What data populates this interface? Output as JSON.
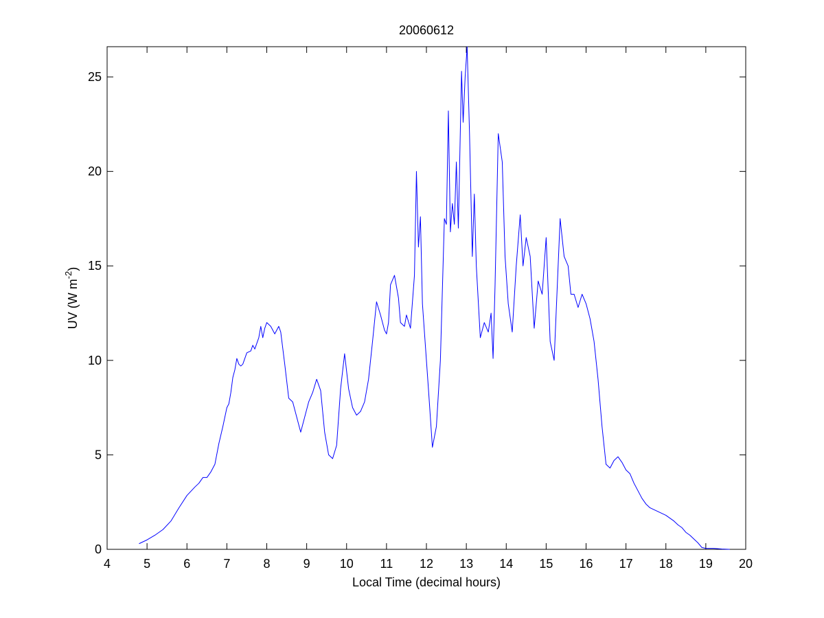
{
  "chart_data": {
    "type": "line",
    "title": "20060612",
    "xlabel": "Local Time (decimal hours)",
    "ylabel": [
      "UV (W m",
      "-2",
      ")"
    ],
    "xlim": [
      4,
      20
    ],
    "xticks": [
      4,
      5,
      6,
      7,
      8,
      9,
      10,
      11,
      12,
      13,
      14,
      15,
      16,
      17,
      18,
      19,
      20
    ],
    "ylim": [
      0,
      26.6
    ],
    "yticks": [
      0,
      5,
      10,
      15,
      20,
      25
    ],
    "grid": false,
    "series": [
      {
        "color": "#0000ff",
        "x": [
          4.8,
          5.0,
          5.2,
          5.4,
          5.6,
          5.8,
          6.0,
          6.2,
          6.3,
          6.4,
          6.5,
          6.6,
          6.7,
          6.8,
          6.9,
          7.0,
          7.05,
          7.1,
          7.15,
          7.2,
          7.25,
          7.3,
          7.35,
          7.4,
          7.5,
          7.6,
          7.65,
          7.7,
          7.8,
          7.85,
          7.9,
          7.95,
          8.0,
          8.1,
          8.2,
          8.3,
          8.35,
          8.45,
          8.55,
          8.65,
          8.75,
          8.85,
          8.95,
          9.05,
          9.15,
          9.25,
          9.35,
          9.45,
          9.55,
          9.65,
          9.75,
          9.85,
          9.95,
          10.05,
          10.15,
          10.25,
          10.35,
          10.45,
          10.55,
          10.65,
          10.75,
          10.85,
          10.95,
          11.0,
          11.05,
          11.1,
          11.2,
          11.3,
          11.35,
          11.45,
          11.5,
          11.6,
          11.7,
          11.75,
          11.8,
          11.85,
          11.9,
          12.0,
          12.05,
          12.15,
          12.25,
          12.35,
          12.45,
          12.5,
          12.55,
          12.6,
          12.65,
          12.7,
          12.75,
          12.8,
          12.88,
          12.92,
          12.97,
          13.02,
          13.08,
          13.15,
          13.2,
          13.25,
          13.35,
          13.45,
          13.55,
          13.62,
          13.67,
          13.72,
          13.8,
          13.9,
          13.97,
          14.05,
          14.15,
          14.25,
          14.35,
          14.42,
          14.5,
          14.6,
          14.7,
          14.8,
          14.9,
          15.0,
          15.1,
          15.2,
          15.35,
          15.45,
          15.55,
          15.62,
          15.7,
          15.8,
          15.9,
          16.0,
          16.1,
          16.2,
          16.3,
          16.4,
          16.5,
          16.6,
          16.7,
          16.8,
          16.9,
          17.0,
          17.1,
          17.2,
          17.3,
          17.4,
          17.5,
          17.6,
          17.7,
          17.8,
          17.9,
          18.0,
          18.1,
          18.2,
          18.3,
          18.4,
          18.5,
          18.6,
          18.7,
          18.8,
          18.9,
          19.0,
          19.2,
          19.4,
          19.6
        ],
        "values": [
          0.3,
          0.5,
          0.75,
          1.05,
          1.5,
          2.2,
          2.85,
          3.3,
          3.5,
          3.8,
          3.8,
          4.1,
          4.5,
          5.6,
          6.5,
          7.5,
          7.7,
          8.3,
          9.1,
          9.5,
          10.1,
          9.8,
          9.7,
          9.8,
          10.4,
          10.5,
          10.8,
          10.6,
          11.2,
          11.8,
          11.2,
          11.7,
          12.0,
          11.8,
          11.4,
          11.8,
          11.5,
          9.8,
          8.0,
          7.8,
          7.0,
          6.2,
          7.0,
          7.8,
          8.3,
          9.0,
          8.4,
          6.2,
          5.0,
          4.8,
          5.5,
          8.5,
          10.35,
          8.5,
          7.5,
          7.1,
          7.3,
          7.8,
          9.0,
          11.0,
          13.1,
          12.4,
          11.6,
          11.4,
          12.0,
          14.0,
          14.5,
          13.3,
          12.0,
          11.8,
          12.4,
          11.7,
          14.5,
          20.0,
          16.0,
          17.6,
          13.0,
          10.0,
          8.5,
          5.4,
          6.5,
          10.0,
          17.5,
          17.2,
          23.2,
          16.8,
          18.3,
          17.2,
          20.5,
          17.0,
          25.3,
          22.6,
          25.0,
          26.6,
          22.0,
          15.5,
          18.8,
          15.0,
          11.2,
          12.0,
          11.5,
          12.5,
          10.1,
          14.0,
          22.0,
          20.5,
          15.5,
          13.0,
          11.5,
          15.0,
          17.7,
          15.0,
          16.5,
          15.5,
          11.7,
          14.2,
          13.5,
          16.5,
          11.0,
          10.0,
          17.5,
          15.5,
          15.0,
          13.5,
          13.5,
          12.8,
          13.5,
          13.0,
          12.2,
          11.0,
          9.0,
          6.5,
          4.5,
          4.3,
          4.7,
          4.9,
          4.6,
          4.2,
          4.0,
          3.5,
          3.1,
          2.7,
          2.4,
          2.2,
          2.1,
          2.0,
          1.9,
          1.8,
          1.65,
          1.5,
          1.3,
          1.15,
          0.9,
          0.75,
          0.55,
          0.35,
          0.1,
          0.05,
          0.05,
          0.02,
          0.0
        ]
      }
    ]
  }
}
